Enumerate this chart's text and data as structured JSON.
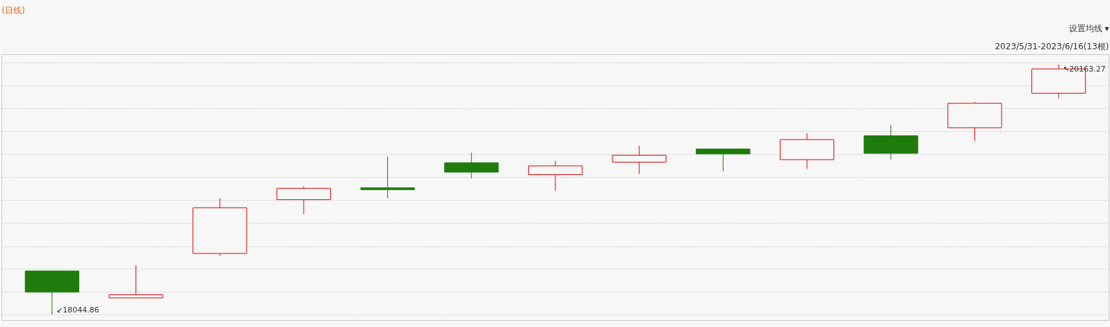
{
  "chart_data": {
    "type": "candlestick",
    "title": "(日线)",
    "subtitle": "2023/5/31-2023/6/16(13根)",
    "annotations": [
      "设置均线 ▾",
      "↙18044.86",
      "↖20163.27"
    ],
    "categories": [
      null,
      null,
      null,
      null,
      null,
      null,
      null,
      null,
      null,
      null,
      null,
      null,
      null
    ],
    "ohlc": [
      [
        18416,
        18416,
        18044.86,
        18236
      ],
      [
        18188,
        18463,
        18188,
        18214
      ],
      [
        18564,
        19030,
        18543,
        18951
      ],
      [
        19019,
        19131,
        18898,
        19115
      ],
      [
        19120,
        19385,
        19030,
        19104
      ],
      [
        19332,
        19417,
        19199,
        19252
      ],
      [
        19231,
        19348,
        19094,
        19305
      ],
      [
        19337,
        19475,
        19237,
        19395
      ],
      [
        19448,
        19448,
        19258,
        19406
      ],
      [
        19358,
        19581,
        19279,
        19528
      ],
      [
        19560,
        19650,
        19358,
        19411
      ],
      [
        19628,
        19846,
        19517,
        19835
      ],
      [
        19920,
        20163.27,
        19877,
        20126
      ]
    ],
    "colors": [
      "#1e7b0c",
      "#e00000",
      "#e00000",
      "#e00000",
      "#1e7b0c",
      "#1e7b0c",
      "#e00000",
      "#e00000",
      "#1e7b0c",
      "#e00000",
      "#1e7b0c",
      "#e00000",
      "#e00000"
    ],
    "ylim": [
      17997,
      20248
    ],
    "yticks": [
      {
        "value": 18045,
        "label": null
      },
      {
        "value": 18236,
        "label": null
      },
      {
        "value": 18432,
        "label": null
      },
      {
        "value": 18622,
        "label": null
      },
      {
        "value": 18818,
        "label": null
      },
      {
        "value": 19014,
        "label": null
      },
      {
        "value": 19205,
        "label": null
      },
      {
        "value": 19401,
        "label": null
      },
      {
        "value": 19597,
        "label": null
      },
      {
        "value": 19788,
        "label": null
      },
      {
        "value": 19984,
        "label": null
      },
      {
        "value": 20179,
        "label": null
      }
    ],
    "grid": "y",
    "tick_labels": false
  }
}
